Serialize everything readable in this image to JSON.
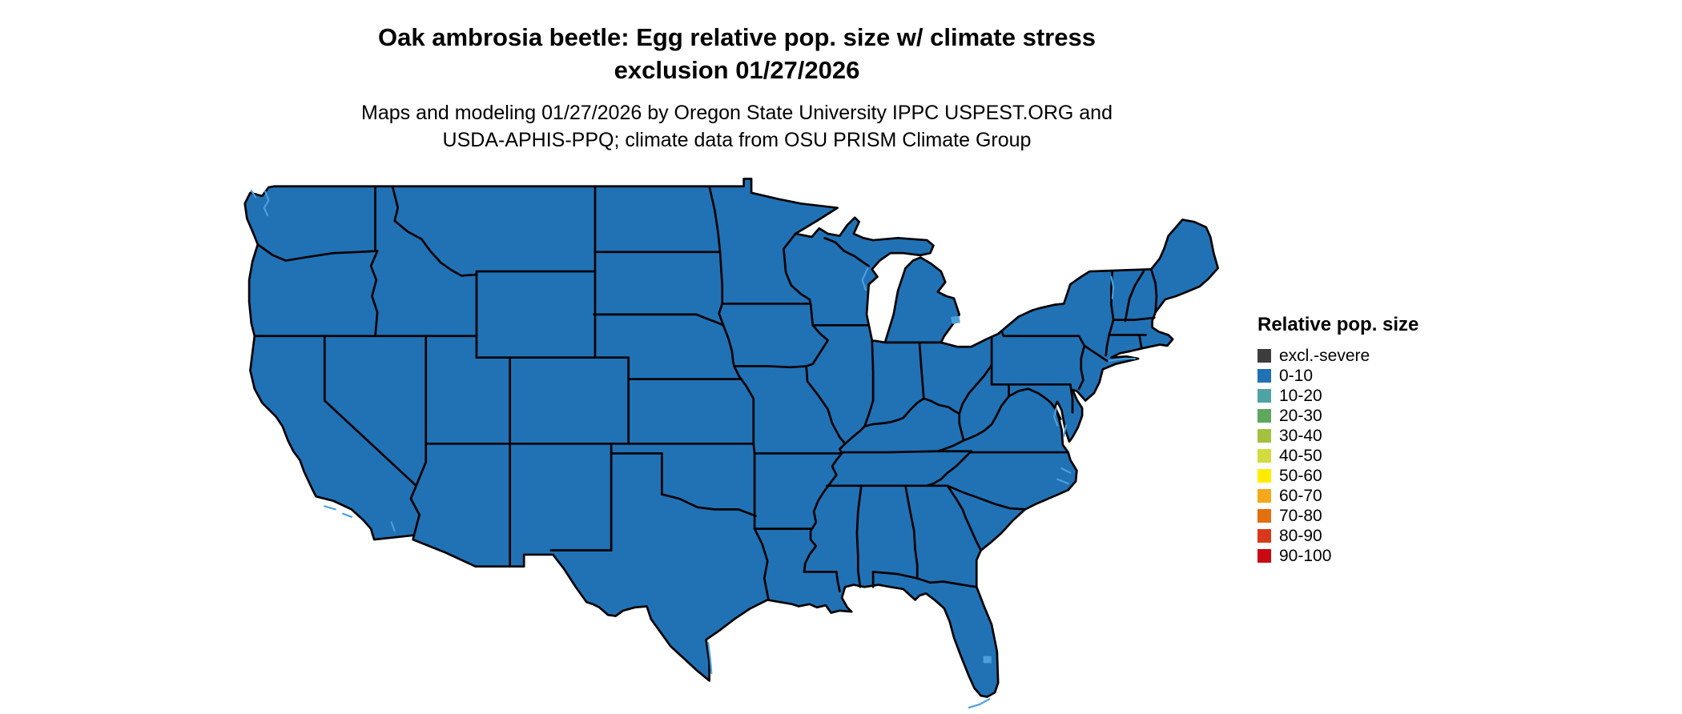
{
  "title": {
    "line1": "Oak ambrosia beetle: Egg relative pop. size w/ climate stress",
    "line2": "exclusion 01/27/2026"
  },
  "subtitle": {
    "line1": "Maps and modeling 01/27/2026 by Oregon State University IPPC USPEST.ORG and",
    "line2": "USDA-APHIS-PPQ; climate data from OSU PRISM Climate Group"
  },
  "legend": {
    "title": "Relative pop. size",
    "items": [
      {
        "label": "excl.-severe",
        "color": "#3d3d3d"
      },
      {
        "label": "0-10",
        "color": "#2171b5"
      },
      {
        "label": "10-20",
        "color": "#4fa3a4"
      },
      {
        "label": "20-30",
        "color": "#5ea75f"
      },
      {
        "label": "30-40",
        "color": "#a3c13f"
      },
      {
        "label": "40-50",
        "color": "#d3dc3e"
      },
      {
        "label": "50-60",
        "color": "#ffeb00"
      },
      {
        "label": "60-70",
        "color": "#f4a81c"
      },
      {
        "label": "70-80",
        "color": "#e2700f"
      },
      {
        "label": "80-90",
        "color": "#d8391b"
      },
      {
        "label": "90-100",
        "color": "#ca0813"
      }
    ]
  },
  "map": {
    "region": "Contiguous United States",
    "displayed_class": "0-10",
    "colors": {
      "land": "#2171b5",
      "border": "#000000",
      "water": "#4d9fdb",
      "background": "#ffffff"
    }
  }
}
